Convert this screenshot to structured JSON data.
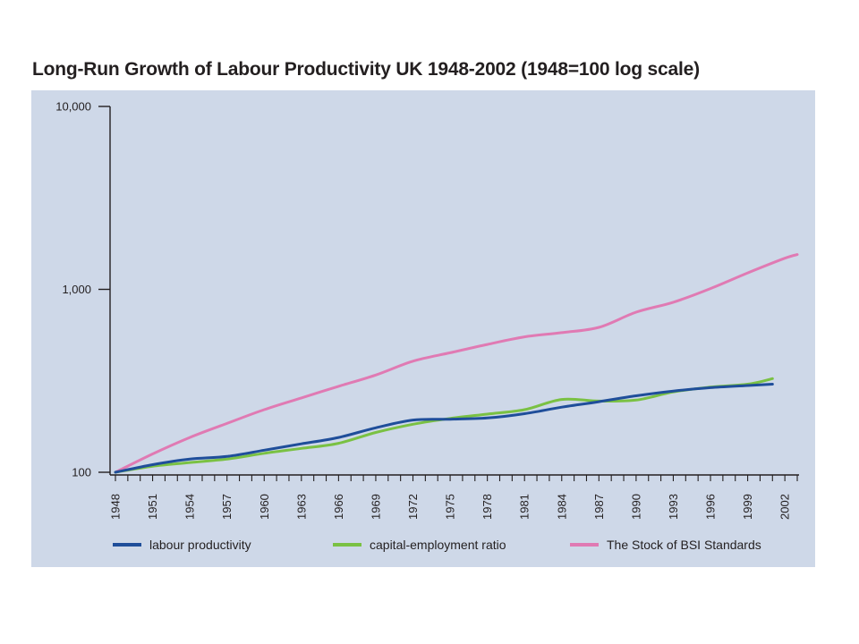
{
  "chart_data": {
    "type": "line",
    "title": "Long-Run Growth of Labour Productivity UK 1948-2002 (1948=100 log scale)",
    "yscale": "log",
    "ylim": [
      100,
      10000
    ],
    "yticks": [
      {
        "value": 100,
        "label": "100"
      },
      {
        "value": 1000,
        "label": "1,000"
      },
      {
        "value": 10000,
        "label": "10,000"
      }
    ],
    "xlim": [
      1948,
      2003
    ],
    "xticks": [
      "1948",
      "1951",
      "1954",
      "1957",
      "1960",
      "1963",
      "1966",
      "1969",
      "1972",
      "1975",
      "1978",
      "1981",
      "1984",
      "1987",
      "1990",
      "1993",
      "1996",
      "1999",
      "2002"
    ],
    "legend_position": "bottom",
    "series": [
      {
        "name": "labour productivity",
        "color": "#1f4e9a",
        "x": [
          1948,
          1951,
          1954,
          1957,
          1960,
          1963,
          1966,
          1969,
          1972,
          1975,
          1978,
          1981,
          1984,
          1987,
          1990,
          1993,
          1996,
          1999,
          2001
        ],
        "values": [
          100,
          110,
          118,
          122,
          132,
          143,
          155,
          175,
          193,
          195,
          198,
          209,
          227,
          243,
          262,
          278,
          290,
          298,
          303
        ]
      },
      {
        "name": "capital-employment ratio",
        "color": "#7ac143",
        "x": [
          1948,
          1951,
          1954,
          1957,
          1960,
          1963,
          1966,
          1969,
          1972,
          1975,
          1978,
          1981,
          1984,
          1987,
          1990,
          1993,
          1996,
          1999,
          2001
        ],
        "values": [
          100,
          108,
          113,
          118,
          127,
          135,
          144,
          165,
          183,
          197,
          208,
          220,
          250,
          245,
          248,
          275,
          292,
          303,
          325
        ]
      },
      {
        "name": "The Stock of BSI Standards",
        "color": "#e07ab3",
        "x": [
          1948,
          1951,
          1954,
          1957,
          1960,
          1963,
          1966,
          1969,
          1972,
          1975,
          1978,
          1981,
          1984,
          1987,
          1990,
          1993,
          1996,
          1999,
          2002,
          2003
        ],
        "values": [
          100,
          126,
          155,
          185,
          220,
          255,
          295,
          340,
          405,
          450,
          500,
          550,
          580,
          620,
          750,
          850,
          1010,
          1230,
          1480,
          1550
        ]
      }
    ]
  }
}
